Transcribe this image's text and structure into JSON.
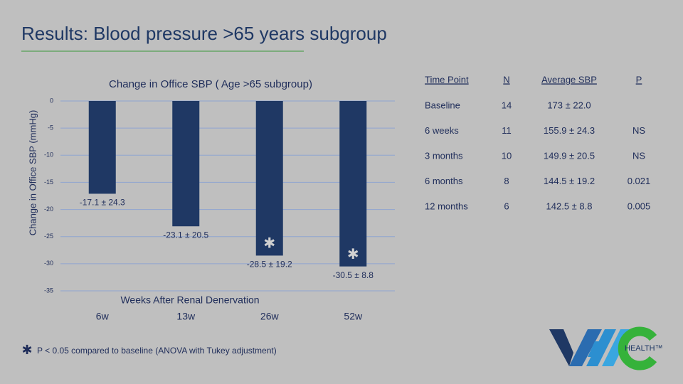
{
  "slide": {
    "title": "Results: Blood pressure >65 years subgroup",
    "footnote_marker": "✱",
    "footnote": "P < 0.05 compared to baseline (ANOVA with Tukey adjustment)",
    "logo_text": "HEALTH™"
  },
  "chart_data": {
    "type": "bar",
    "title": "Change in Office SBP ( Age >65 subgroup)",
    "x_label": "Weeks After Renal Denervation",
    "y_label": "Change in Office SBP (mmHg)",
    "categories": [
      "6w",
      "13w",
      "26w",
      "52w"
    ],
    "values": [
      -17.1,
      -23.1,
      -28.5,
      -30.5
    ],
    "value_labels": [
      "-17.1 ± 24.3",
      "-23.1 ± 20.5",
      "-28.5 ± 19.2",
      "-30.5 ± 8.8"
    ],
    "markers": [
      null,
      null,
      "✱",
      "✱"
    ],
    "color": "#1f3864",
    "ylim": [
      -35,
      0
    ],
    "yticks": [
      0,
      -5,
      -10,
      -15,
      -20,
      -25,
      -30,
      -35
    ],
    "grid": true
  },
  "table": {
    "header": [
      "Time Point",
      "N",
      "Average SBP",
      "P"
    ],
    "rows": [
      [
        "Baseline",
        "14",
        "173 ± 22.0",
        null
      ],
      [
        "6 weeks",
        "11",
        "155.9 ± 24.3",
        "NS"
      ],
      [
        "3 months",
        "10",
        "149.9 ± 20.5",
        "NS"
      ],
      [
        "6 months",
        "8",
        "144.5 ± 19.2",
        "0.021"
      ],
      [
        "12 months",
        "6",
        "142.5 ± 8.8",
        "0.005"
      ]
    ]
  }
}
